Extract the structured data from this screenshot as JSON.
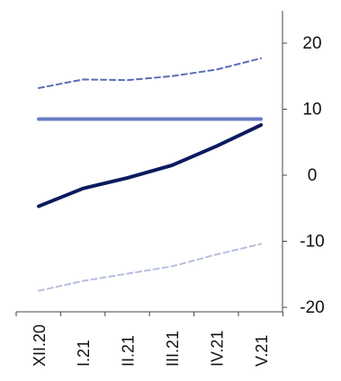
{
  "chart_data": {
    "type": "line",
    "categories": [
      "XII.20",
      "I.21",
      "II.21",
      "III.21",
      "IV.21",
      "V.21"
    ],
    "series": [
      {
        "values": [
          13.2,
          14.5,
          14.4,
          15.0,
          16.0,
          17.7
        ],
        "color": "#5a6eb4",
        "style": "dashed"
      },
      {
        "values": [
          8.5,
          8.5,
          8.5,
          8.5,
          8.5,
          8.5
        ],
        "color": "#6a7cc4",
        "style": "solid"
      },
      {
        "values": [
          -4.7,
          -2.0,
          -0.4,
          1.5,
          4.4,
          7.6
        ],
        "color": "#0b1a5e",
        "style": "solid"
      },
      {
        "values": [
          -17.5,
          -16.0,
          -14.9,
          -13.8,
          -12.0,
          -10.4
        ],
        "color": "#b7bedf",
        "style": "dashed"
      }
    ],
    "yticks": [
      -20,
      -10,
      0,
      10,
      20
    ],
    "ylim": [
      -20,
      25
    ],
    "yaxis_side": "right",
    "grid": false,
    "legend": "none"
  }
}
